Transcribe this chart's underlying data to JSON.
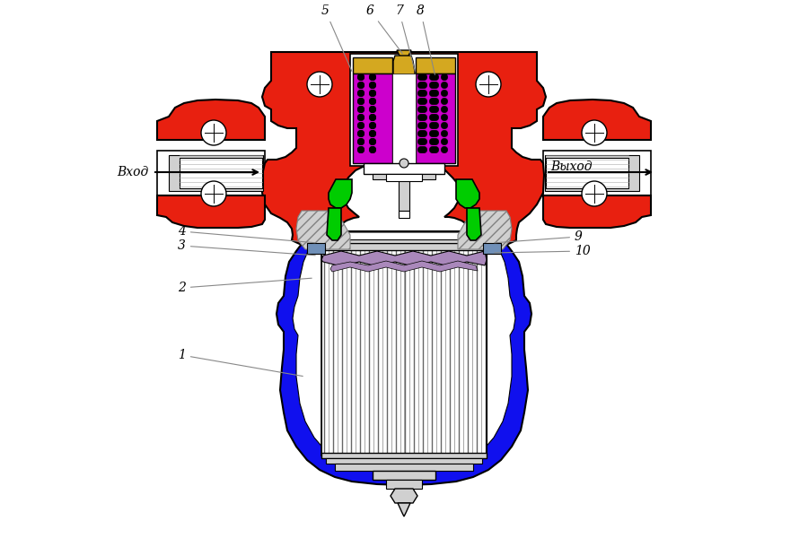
{
  "bg_color": "#ffffff",
  "red": "#e82010",
  "blue": "#1010ee",
  "green": "#00cc00",
  "magenta": "#cc00cc",
  "yellow": "#d4a820",
  "gray_blue": "#7090b8",
  "dark_gray": "#505050",
  "light_gray": "#d0d0d0",
  "purple": "#aa88bb",
  "white": "#ffffff",
  "black": "#000000",
  "hatch_gray": "#b0b0b0"
}
